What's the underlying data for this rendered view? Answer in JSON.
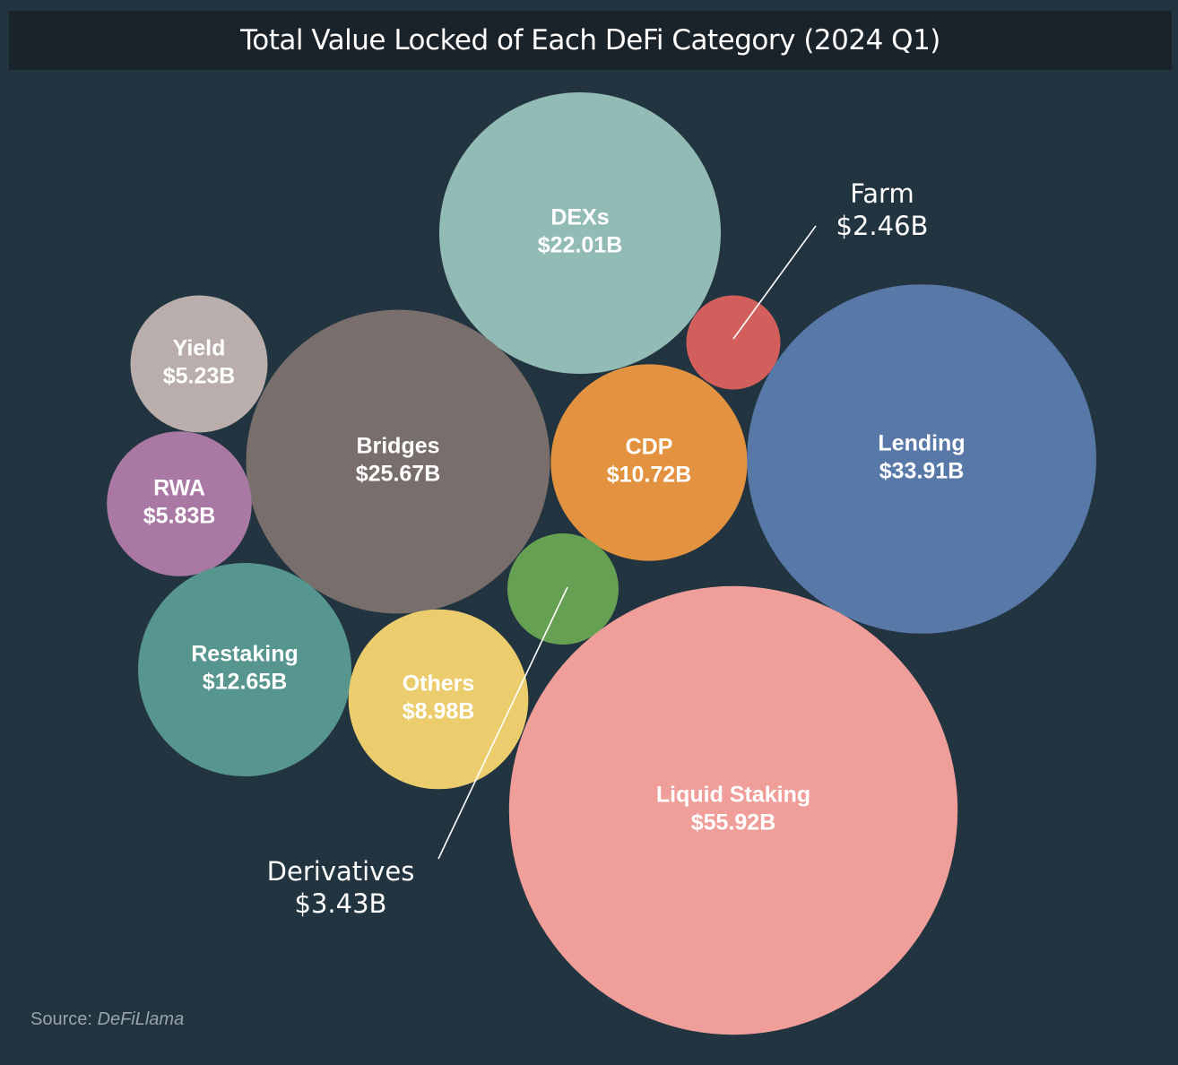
{
  "chart_data": {
    "type": "bubble",
    "title": "Total Value Locked of Each DeFi Category (2024 Q1)",
    "unit": "$B",
    "series": [
      {
        "name": "DEXs",
        "value": 22.01,
        "label": "$22.01B",
        "color": "#93bbb6"
      },
      {
        "name": "Farm",
        "value": 2.46,
        "label": "$2.46B",
        "color": "#d35f5d"
      },
      {
        "name": "Yield",
        "value": 5.23,
        "label": "$5.23B",
        "color": "#b9aeab"
      },
      {
        "name": "Bridges",
        "value": 25.67,
        "label": "$25.67B",
        "color": "#786e6b"
      },
      {
        "name": "CDP",
        "value": 10.72,
        "label": "$10.72B",
        "color": "#e3933f"
      },
      {
        "name": "Lending",
        "value": 33.91,
        "label": "$33.91B",
        "color": "#5878a8"
      },
      {
        "name": "RWA",
        "value": 5.83,
        "label": "$5.83B",
        "color": "#a979a4"
      },
      {
        "name": "Derivatives",
        "value": 3.43,
        "label": "$3.43B",
        "color": "#66a052"
      },
      {
        "name": "Restaking",
        "value": 12.65,
        "label": "$12.65B",
        "color": "#57958f"
      },
      {
        "name": "Others",
        "value": 8.98,
        "label": "$8.98B",
        "color": "#eccd6e"
      },
      {
        "name": "Liquid Staking",
        "value": 55.92,
        "label": "$55.92B",
        "color": "#f09e9a"
      }
    ]
  },
  "source": {
    "label": "Source:",
    "name": "DeFiLlama"
  }
}
